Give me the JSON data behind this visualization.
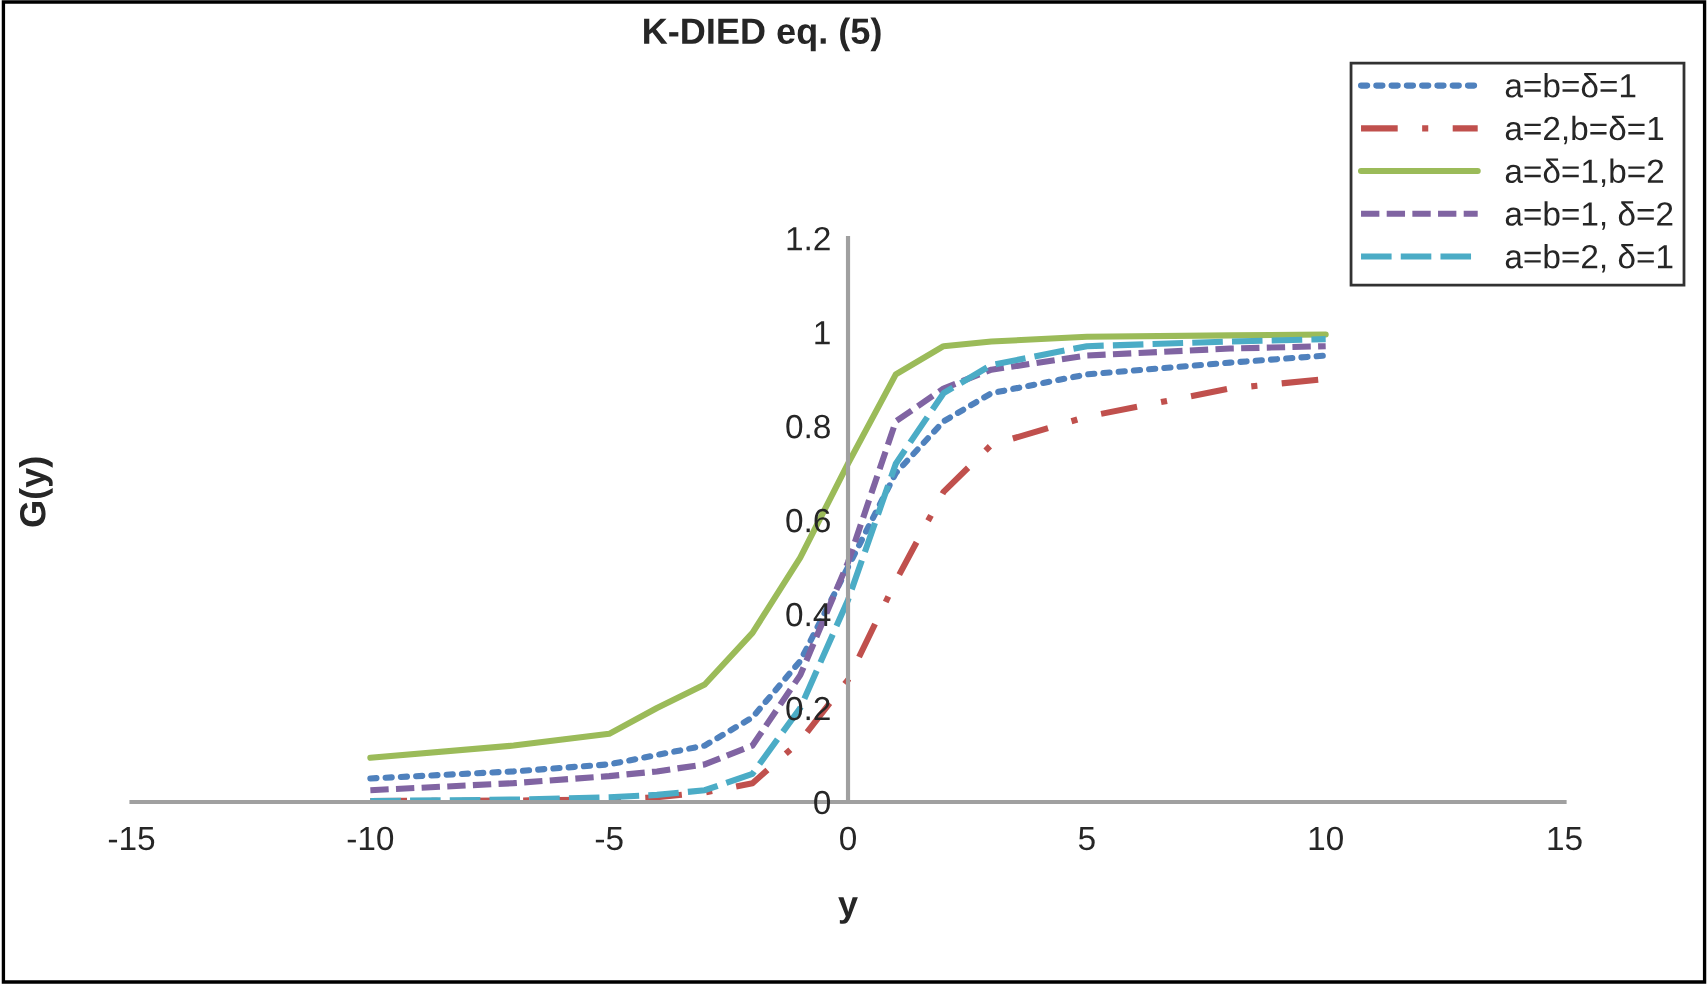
{
  "chart_data": {
    "type": "line",
    "title": "K-DIED eq. (5)",
    "xlabel": "y",
    "ylabel": "G(y)",
    "x": [
      -10,
      -7,
      -5,
      -4,
      -3,
      -2,
      -1,
      0,
      1,
      2,
      3,
      5,
      8,
      10
    ],
    "series": [
      {
        "name": "a=b=δ=1",
        "color": "#4f81bd",
        "line_style": "dotted",
        "values": [
          0.05,
          0.065,
          0.08,
          0.1,
          0.12,
          0.18,
          0.3,
          0.5,
          0.7,
          0.81,
          0.87,
          0.91,
          0.935,
          0.95
        ]
      },
      {
        "name": "a=2,b=δ=1",
        "color": "#c0504d",
        "line_style": "dashdot",
        "values": [
          0.002,
          0.003,
          0.005,
          0.01,
          0.02,
          0.04,
          0.13,
          0.26,
          0.47,
          0.66,
          0.76,
          0.82,
          0.88,
          0.9
        ]
      },
      {
        "name": "a=δ=1,b=2",
        "color": "#9bbb59",
        "line_style": "solid",
        "values": [
          0.094,
          0.12,
          0.145,
          0.2,
          0.25,
          0.36,
          0.52,
          0.72,
          0.91,
          0.97,
          0.98,
          0.99,
          0.993,
          0.995
        ]
      },
      {
        "name": "a=b=1, δ=2",
        "color": "#8064a2",
        "line_style": "dashed",
        "values": [
          0.025,
          0.04,
          0.055,
          0.065,
          0.08,
          0.12,
          0.27,
          0.51,
          0.81,
          0.88,
          0.92,
          0.95,
          0.965,
          0.97
        ]
      },
      {
        "name": "a=b=2, δ=1",
        "color": "#4bacc6",
        "line_style": "longdash",
        "values": [
          0.002,
          0.005,
          0.01,
          0.015,
          0.025,
          0.06,
          0.2,
          0.43,
          0.72,
          0.87,
          0.93,
          0.97,
          0.98,
          0.985
        ]
      }
    ],
    "xlim": [
      -15,
      15
    ],
    "ylim": [
      0,
      1.2
    ],
    "xticks": [
      -15,
      -10,
      -5,
      0,
      5,
      10,
      15
    ],
    "yticks": [
      0,
      0.2,
      0.4,
      0.6,
      0.8,
      1,
      1.2
    ],
    "grid": false,
    "legend": "top right",
    "marker": "none"
  }
}
